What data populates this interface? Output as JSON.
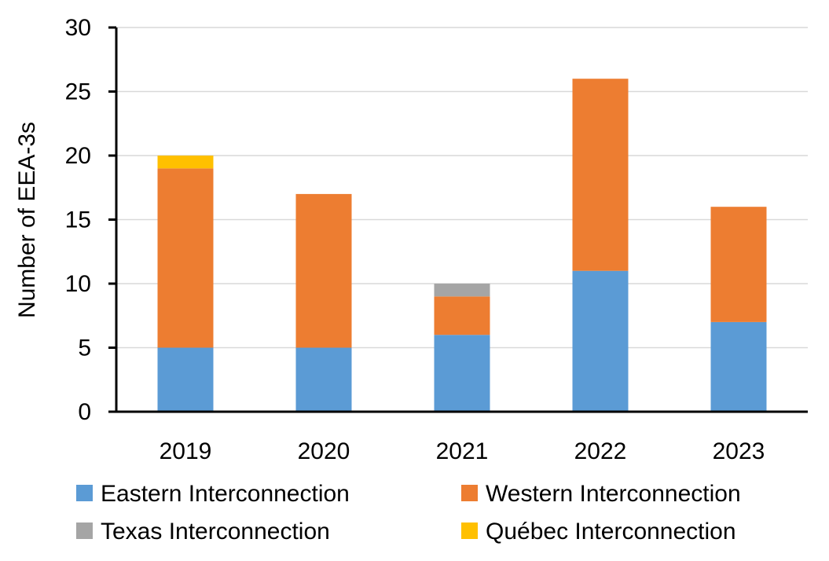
{
  "chart_data": {
    "type": "bar",
    "stacked": true,
    "title": "",
    "xlabel": "",
    "ylabel": "Number of EEA-3s",
    "categories": [
      "2019",
      "2020",
      "2021",
      "2022",
      "2023"
    ],
    "ylim": [
      0,
      30
    ],
    "yticks": [
      0,
      5,
      10,
      15,
      20,
      25,
      30
    ],
    "grid": true,
    "legend_position": "bottom",
    "series": [
      {
        "name": "Eastern Interconnection",
        "color": "#5B9BD5",
        "values": [
          5,
          5,
          6,
          11,
          7
        ]
      },
      {
        "name": "Western Interconnection",
        "color": "#ED7D31",
        "values": [
          14,
          12,
          3,
          15,
          9
        ]
      },
      {
        "name": "Texas Interconnection",
        "color": "#A5A5A5",
        "values": [
          0,
          0,
          1,
          0,
          0
        ]
      },
      {
        "name": "Québec Interconnection",
        "color": "#FFC000",
        "values": [
          1,
          0,
          0,
          0,
          0
        ]
      }
    ]
  }
}
